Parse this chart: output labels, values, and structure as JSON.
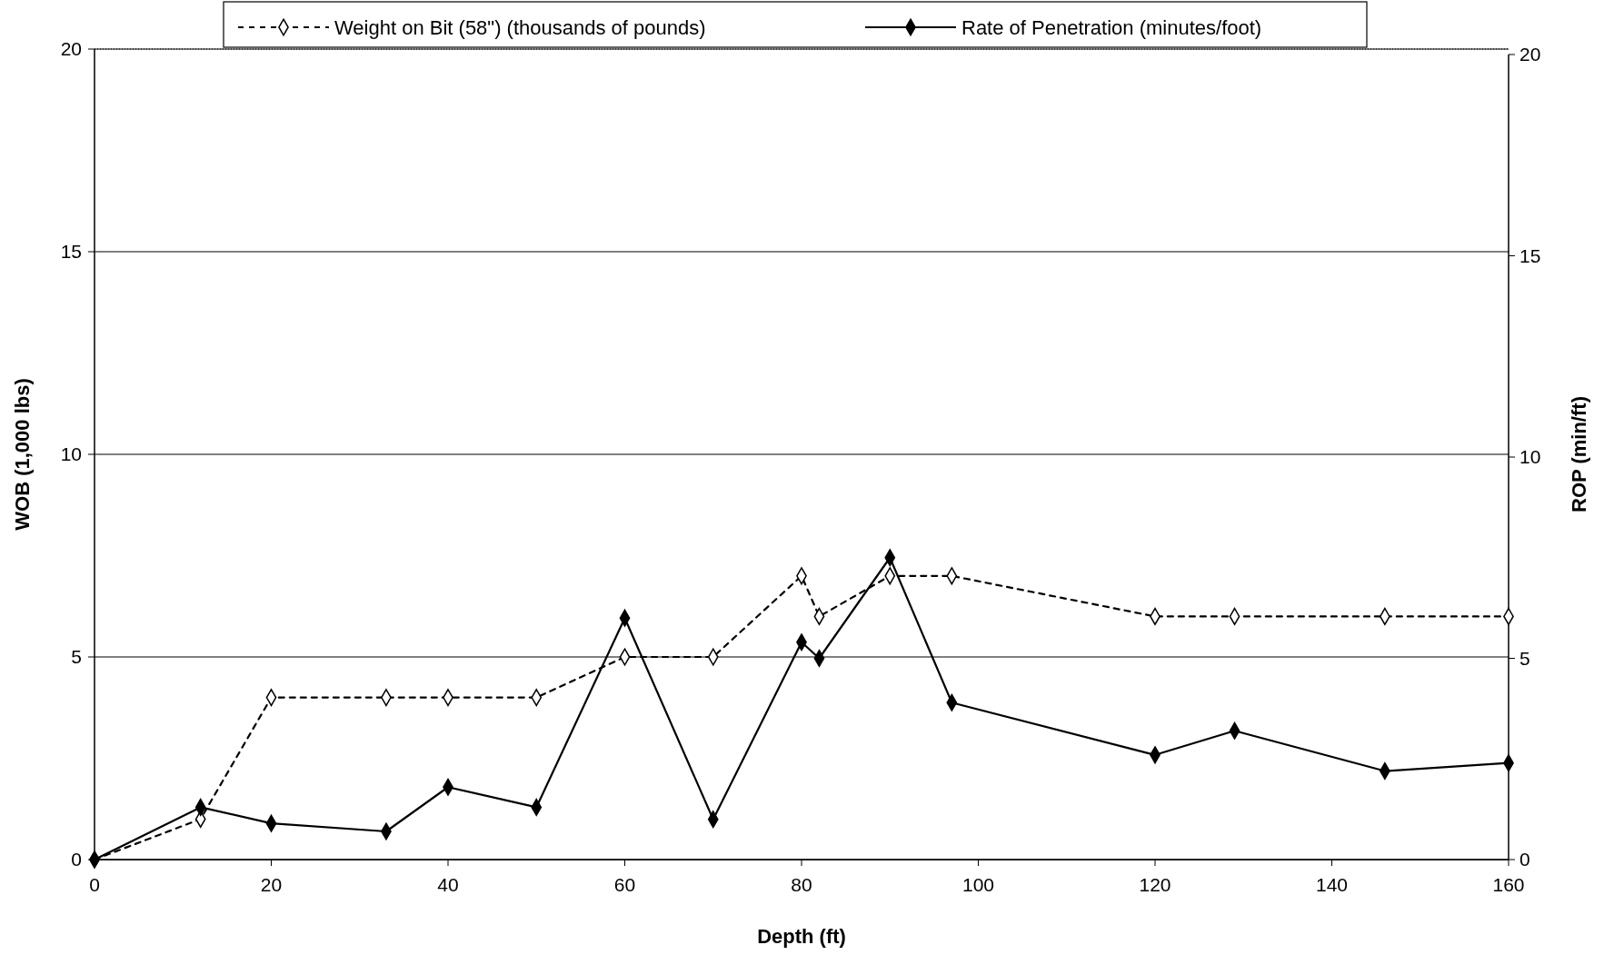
{
  "chart_data": {
    "type": "line",
    "xlabel": "Depth (ft)",
    "ylabel": "WOB (1,000 lbs)",
    "y2label": "ROP (min/ft)",
    "xlim": [
      0,
      160
    ],
    "xticks": [
      0,
      20,
      40,
      60,
      80,
      100,
      120,
      140,
      160
    ],
    "ylim": [
      0,
      20
    ],
    "yticks": [
      0,
      5,
      10,
      15,
      20
    ],
    "y2lim": [
      0,
      20
    ],
    "y2ticks": [
      0,
      5,
      10,
      15,
      20
    ],
    "grid": "y",
    "legend": "top",
    "marker": "diamond",
    "series": [
      {
        "name": "Weight on Bit (58\") (thousands of pounds)",
        "color": "#000000",
        "line_style": "dashed",
        "x": [
          0,
          12,
          20,
          33,
          40,
          50,
          60,
          70,
          80,
          82,
          90,
          97,
          120,
          129,
          146,
          160
        ],
        "values": [
          0,
          1,
          4,
          4,
          4,
          4,
          5,
          5,
          7,
          6,
          7,
          7,
          6,
          6,
          6,
          6
        ]
      },
      {
        "name": "Rate of Penetration (minutes/foot)",
        "color": "#000000",
        "line_style": "solid",
        "axis": "y2",
        "x": [
          0,
          12,
          20,
          33,
          40,
          50,
          60,
          70,
          80,
          82,
          90,
          97,
          120,
          129,
          146,
          160
        ],
        "values": [
          0,
          1.3,
          0.9,
          0.7,
          1.8,
          1.3,
          6.0,
          1.0,
          5.4,
          5.0,
          7.5,
          3.9,
          2.6,
          3.2,
          2.2,
          2.4
        ]
      }
    ]
  }
}
